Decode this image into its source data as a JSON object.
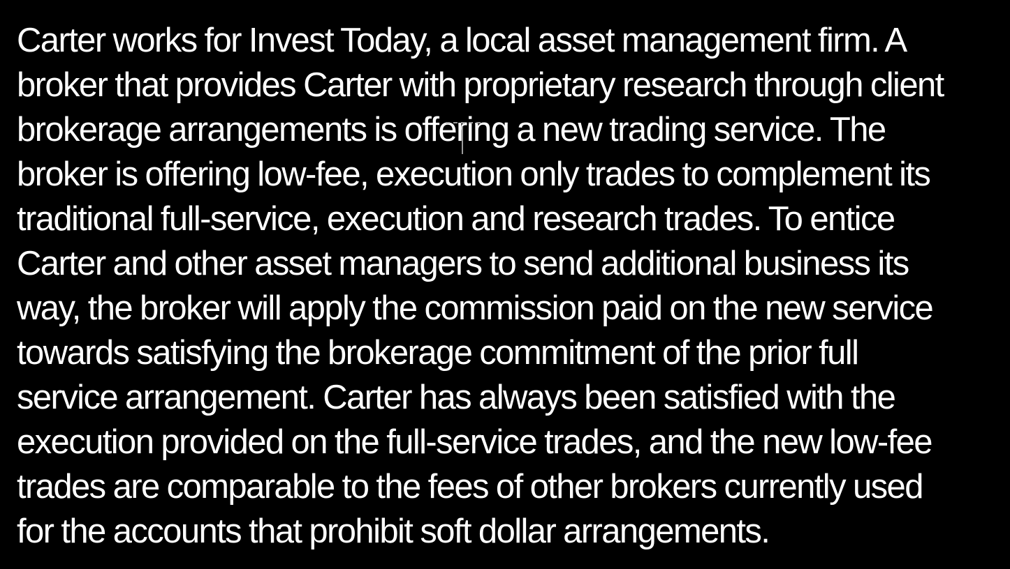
{
  "passage": {
    "lines": [
      "Carter works for Invest Today, a local asset management firm. A",
      "broker that provides Carter with proprietary research through client",
      "brokerage arrangements is offering a new trading service.  The",
      "broker is offering low-fee, execution only trades to complement its",
      "traditional full-service, execution and research trades.  To entice",
      "Carter and other asset managers to send additional business its",
      "way, the broker will apply the commission paid on the new service",
      "towards satisfying the brokerage commitment of the prior full",
      "service arrangement.  Carter has always been satisfied with the",
      "execution provided on the full-service trades, and the new low-fee",
      "trades are comparable to the fees of other brokers currently used",
      "for the accounts that prohibit soft dollar arrangements."
    ]
  },
  "colors": {
    "background": "#000000",
    "text": "#ffffff",
    "cursor": "#9a9a9a"
  },
  "icons": {
    "cursor": "text-cursor-icon"
  }
}
